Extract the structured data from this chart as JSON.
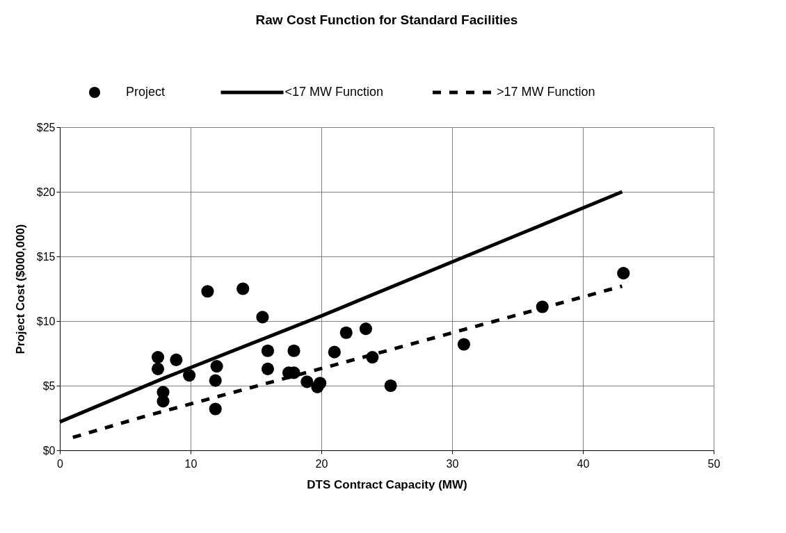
{
  "chart_data": {
    "type": "scatter",
    "title": "Raw Cost Function for Standard Facilities",
    "xlabel": "DTS Contract Capacity (MW)",
    "ylabel": "Project Cost ($000,000)",
    "xlim": [
      0,
      50
    ],
    "xticks": [
      0,
      10,
      20,
      30,
      40,
      50
    ],
    "ylim": [
      0,
      25
    ],
    "yticks": [
      {
        "value": 0,
        "label": "$0"
      },
      {
        "value": 5,
        "label": "$5"
      },
      {
        "value": 10,
        "label": "$10"
      },
      {
        "value": 15,
        "label": "$15"
      },
      {
        "value": 20,
        "label": "$20"
      },
      {
        "value": 25,
        "label": "$25"
      }
    ],
    "grid": true,
    "legend": "top",
    "series": [
      {
        "name": "Project",
        "marker": "circle",
        "color": "#000000",
        "x": [
          7.5,
          7.5,
          8.9,
          7.9,
          7.9,
          9.9,
          11.3,
          14.0,
          12.0,
          11.9,
          11.9,
          15.5,
          15.9,
          15.9,
          17.9,
          17.5,
          17.9,
          18.9,
          19.7,
          19.9,
          21.0,
          21.9,
          23.4,
          23.9,
          25.3,
          30.9,
          36.9,
          43.1
        ],
        "values": [
          7.2,
          6.3,
          7.0,
          4.5,
          3.8,
          5.8,
          12.3,
          12.5,
          6.5,
          5.4,
          3.2,
          10.3,
          7.7,
          6.3,
          7.7,
          6.0,
          6.0,
          5.3,
          4.9,
          5.2,
          7.6,
          9.1,
          9.4,
          7.2,
          5.0,
          8.2,
          11.1,
          13.7
        ]
      },
      {
        "name": "<17 MW Function",
        "type": "line",
        "line_style": "solid",
        "color": "#000000",
        "x": [
          0,
          8,
          20,
          43
        ],
        "values": [
          2.2,
          5.6,
          10.4,
          20.0
        ]
      },
      {
        "name": ">17 MW Function",
        "type": "line",
        "line_style": "dashed",
        "color": "#000000",
        "x": [
          1,
          6.4,
          25,
          43
        ],
        "values": [
          1.0,
          2.6,
          7.7,
          12.7
        ]
      }
    ]
  }
}
